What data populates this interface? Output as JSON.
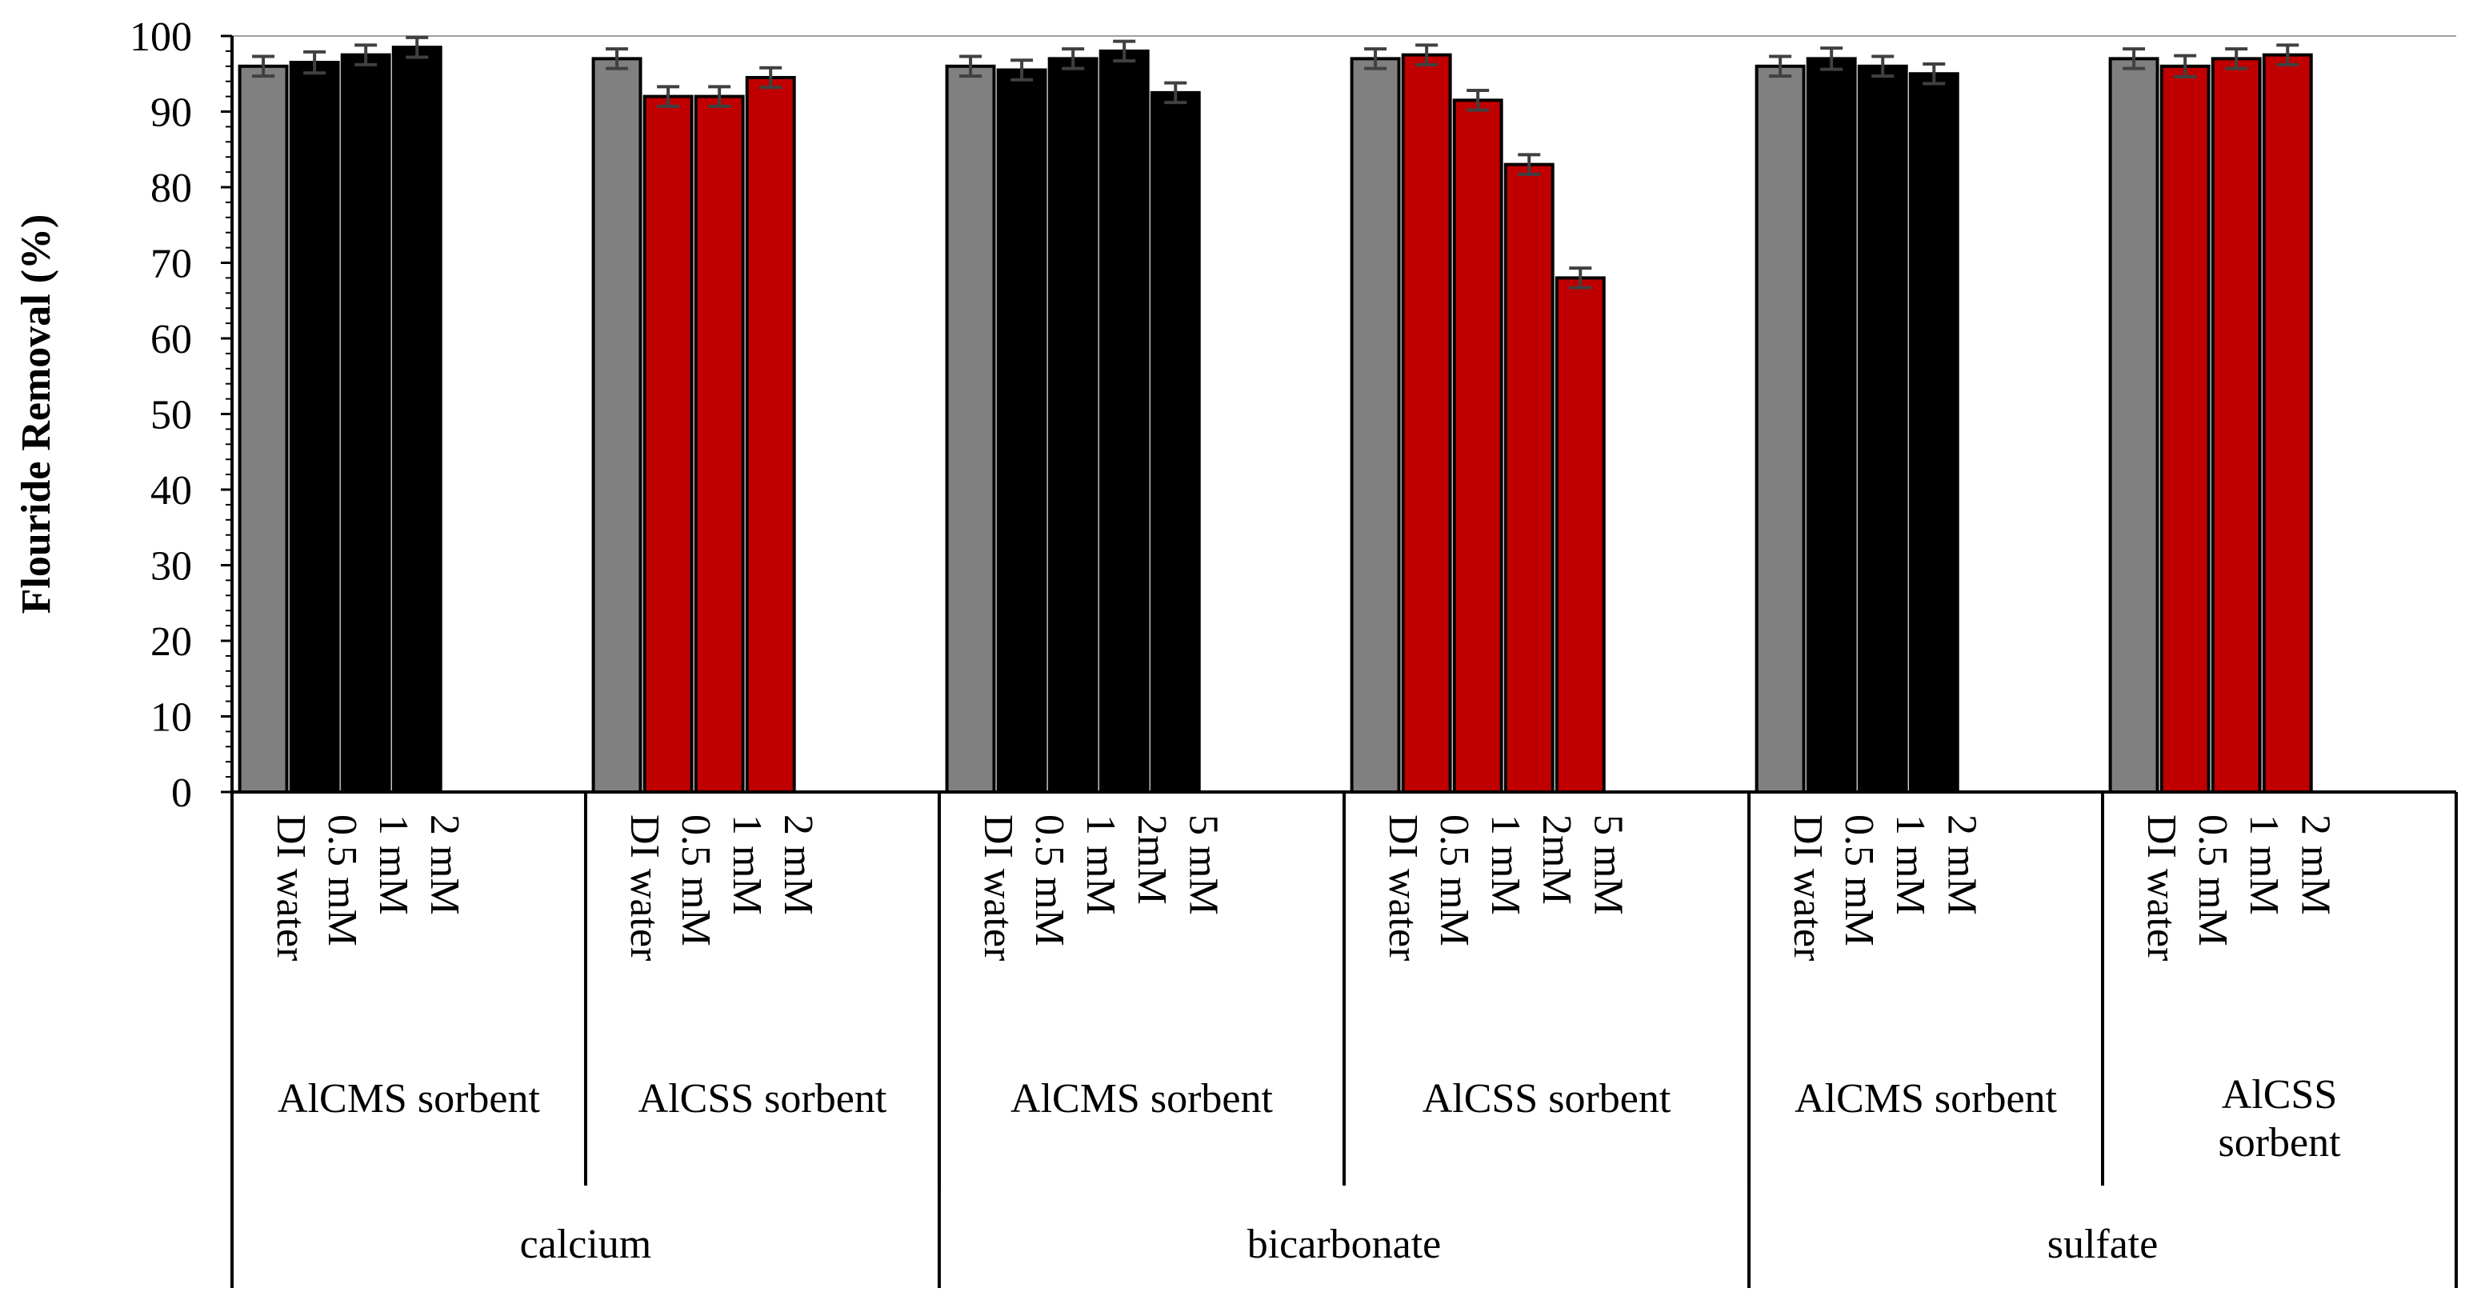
{
  "chart_data": {
    "type": "bar",
    "title": "",
    "xlabel": "",
    "ylabel": "Flouride Removal (%)",
    "ylim": [
      0,
      100
    ],
    "ytick_step": 10,
    "grid": false,
    "colors": {
      "di_water": "#808080",
      "alcms": "#000000",
      "alcss": "#c00000",
      "error_bar": "#404040",
      "axis": "#000000"
    },
    "ions": [
      {
        "name": "calcium",
        "groups": [
          {
            "sorbent": "AlCMS sorbent",
            "bars": [
              {
                "label": "DI water",
                "value": 96.0,
                "error": 1.3,
                "kind": "di_water"
              },
              {
                "label": "0.5 mM",
                "value": 96.5,
                "error": 1.4,
                "kind": "alcms"
              },
              {
                "label": "1 mM",
                "value": 97.5,
                "error": 1.3,
                "kind": "alcms"
              },
              {
                "label": "2 mM",
                "value": 98.5,
                "error": 1.3,
                "kind": "alcms"
              }
            ]
          },
          {
            "sorbent": "AlCSS sorbent",
            "bars": [
              {
                "label": "DI water",
                "value": 97.0,
                "error": 1.3,
                "kind": "di_water"
              },
              {
                "label": "0.5 mM",
                "value": 92.0,
                "error": 1.3,
                "kind": "alcss"
              },
              {
                "label": "1 mM",
                "value": 92.0,
                "error": 1.3,
                "kind": "alcss"
              },
              {
                "label": "2 mM",
                "value": 94.5,
                "error": 1.3,
                "kind": "alcss"
              }
            ]
          }
        ]
      },
      {
        "name": "bicarbonate",
        "groups": [
          {
            "sorbent": "AlCMS sorbent",
            "bars": [
              {
                "label": "DI water",
                "value": 96.0,
                "error": 1.3,
                "kind": "di_water"
              },
              {
                "label": "0.5 mM",
                "value": 95.5,
                "error": 1.3,
                "kind": "alcms"
              },
              {
                "label": "1 mM",
                "value": 97.0,
                "error": 1.3,
                "kind": "alcms"
              },
              {
                "label": "2mM",
                "value": 98.0,
                "error": 1.3,
                "kind": "alcms"
              },
              {
                "label": "5 mM",
                "value": 92.5,
                "error": 1.3,
                "kind": "alcms"
              }
            ]
          },
          {
            "sorbent": "AlCSS sorbent",
            "bars": [
              {
                "label": "DI water",
                "value": 97.0,
                "error": 1.3,
                "kind": "di_water"
              },
              {
                "label": "0.5 mM",
                "value": 97.5,
                "error": 1.3,
                "kind": "alcss"
              },
              {
                "label": "1 mM",
                "value": 91.5,
                "error": 1.3,
                "kind": "alcss"
              },
              {
                "label": "2mM",
                "value": 83.0,
                "error": 1.3,
                "kind": "alcss"
              },
              {
                "label": "5 mM",
                "value": 68.0,
                "error": 1.3,
                "kind": "alcss"
              }
            ]
          }
        ]
      },
      {
        "name": "sulfate",
        "groups": [
          {
            "sorbent": "AlCMS sorbent",
            "bars": [
              {
                "label": "DI water",
                "value": 96.0,
                "error": 1.3,
                "kind": "di_water"
              },
              {
                "label": "0.5 mM",
                "value": 97.0,
                "error": 1.4,
                "kind": "alcms"
              },
              {
                "label": "1 mM",
                "value": 96.0,
                "error": 1.3,
                "kind": "alcms"
              },
              {
                "label": "2 mM",
                "value": 95.0,
                "error": 1.3,
                "kind": "alcms"
              }
            ]
          },
          {
            "sorbent": "AlCSS\nsorbent",
            "bars": [
              {
                "label": "DI water",
                "value": 97.0,
                "error": 1.3,
                "kind": "di_water"
              },
              {
                "label": "0.5 mM",
                "value": 96.0,
                "error": 1.4,
                "kind": "alcss"
              },
              {
                "label": "1 mM",
                "value": 97.0,
                "error": 1.3,
                "kind": "alcss"
              },
              {
                "label": "2 mM",
                "value": 97.5,
                "error": 1.3,
                "kind": "alcss"
              }
            ]
          }
        ]
      }
    ]
  }
}
